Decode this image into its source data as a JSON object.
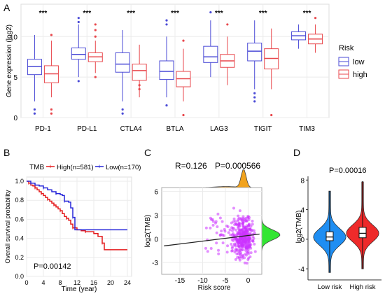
{
  "panels": {
    "A": "A",
    "B": "B",
    "C": "C",
    "D": "D"
  },
  "chart_data": [
    {
      "panel": "A",
      "type": "box",
      "ylabel": "Gene expression (log2)",
      "ylim": [
        0,
        14
      ],
      "yticks": [
        0,
        5,
        10
      ],
      "categories": [
        "PD-1",
        "PD-L1",
        "CTLA4",
        "BTLA",
        "LAG3",
        "TIGIT",
        "TIM3"
      ],
      "significance": [
        "***",
        "***",
        "***",
        "***",
        "***",
        "***",
        "***"
      ],
      "legend_title": "Risk",
      "grid": true,
      "legend_position": "right",
      "colors": {
        "low": "#4a4ad6",
        "high": "#e8474c"
      },
      "series": [
        {
          "name": "low",
          "boxes": [
            {
              "min": 2.0,
              "q1": 5.3,
              "median": 6.3,
              "q3": 7.2,
              "max": 10.2,
              "outliers": [
                0.5,
                1.0
              ]
            },
            {
              "min": 5.0,
              "q1": 7.2,
              "median": 7.8,
              "q3": 8.6,
              "max": 11.5,
              "outliers": [
                4.5,
                12.3,
                11.8
              ]
            },
            {
              "min": 2.0,
              "q1": 5.6,
              "median": 6.6,
              "q3": 8.0,
              "max": 10.8,
              "outliers": [
                0.5,
                1.0
              ]
            },
            {
              "min": 2.5,
              "q1": 4.7,
              "median": 5.7,
              "q3": 7.0,
              "max": 10.0,
              "outliers": [
                1.5,
                11.5,
                12.0
              ]
            },
            {
              "min": 5.0,
              "q1": 6.8,
              "median": 7.5,
              "q3": 8.8,
              "max": 12.0,
              "outliers": [
                13.0
              ]
            },
            {
              "min": 3.5,
              "q1": 7.0,
              "median": 8.2,
              "q3": 9.2,
              "max": 12.0,
              "outliers": [
                2.0,
                2.5,
                3.0
              ]
            },
            {
              "min": 8.5,
              "q1": 9.6,
              "median": 10.1,
              "q3": 10.6,
              "max": 11.5,
              "outliers": []
            }
          ]
        },
        {
          "name": "high",
          "boxes": [
            {
              "min": 2.5,
              "q1": 4.3,
              "median": 5.4,
              "q3": 6.4,
              "max": 9.5,
              "outliers": [
                0.5,
                1.0,
                10.2
              ]
            },
            {
              "min": 5.5,
              "q1": 6.9,
              "median": 7.5,
              "q3": 8.0,
              "max": 9.5,
              "outliers": [
                5.0,
                10.0,
                10.8,
                11.5
              ]
            },
            {
              "min": 2.5,
              "q1": 4.6,
              "median": 5.8,
              "q3": 6.6,
              "max": 9.0,
              "outliers": [
                3.5,
                4.0
              ]
            },
            {
              "min": 2.0,
              "q1": 3.8,
              "median": 4.8,
              "q3": 5.7,
              "max": 8.5,
              "outliers": [
                0.3,
                9.5
              ]
            },
            {
              "min": 4.0,
              "q1": 6.2,
              "median": 7.0,
              "q3": 7.8,
              "max": 10.0,
              "outliers": [
                11.5
              ]
            },
            {
              "min": 3.5,
              "q1": 6.0,
              "median": 7.3,
              "q3": 8.5,
              "max": 11.0,
              "outliers": [
                0.3
              ]
            },
            {
              "min": 8.0,
              "q1": 9.1,
              "median": 9.7,
              "q3": 10.3,
              "max": 11.5,
              "outliers": [
                12.3
              ]
            }
          ]
        }
      ]
    },
    {
      "panel": "B",
      "type": "line",
      "subtype": "kaplan-meier",
      "xlabel": "Time (year)",
      "ylabel": "Overall survival probability",
      "xlim": [
        0,
        25
      ],
      "ylim": [
        0,
        1
      ],
      "xticks": [
        0,
        4,
        8,
        12,
        16,
        20,
        24
      ],
      "yticks": [
        0.0,
        0.2,
        0.4,
        0.6,
        0.8,
        1.0
      ],
      "legend_title": "TMB",
      "legend_position": "top",
      "annotation": "P=0.00142",
      "series": [
        {
          "name": "High(n=581)",
          "color": "#e41a1c",
          "points": [
            [
              0,
              1.0
            ],
            [
              0.5,
              0.98
            ],
            [
              1,
              0.96
            ],
            [
              1.5,
              0.95
            ],
            [
              2,
              0.93
            ],
            [
              2.5,
              0.91
            ],
            [
              3,
              0.89
            ],
            [
              3.5,
              0.87
            ],
            [
              4,
              0.85
            ],
            [
              4.5,
              0.83
            ],
            [
              5,
              0.81
            ],
            [
              5.5,
              0.79
            ],
            [
              6,
              0.77
            ],
            [
              6.5,
              0.75
            ],
            [
              7,
              0.73
            ],
            [
              7.5,
              0.71
            ],
            [
              8,
              0.69
            ],
            [
              8.5,
              0.66
            ],
            [
              9,
              0.63
            ],
            [
              9.5,
              0.61
            ],
            [
              10,
              0.59
            ],
            [
              10.5,
              0.55
            ],
            [
              11,
              0.51
            ],
            [
              12,
              0.49
            ],
            [
              13,
              0.48
            ],
            [
              14,
              0.47
            ],
            [
              16,
              0.45
            ],
            [
              17,
              0.42
            ],
            [
              18,
              0.35
            ],
            [
              18.5,
              0.28
            ],
            [
              24,
              0.28
            ]
          ]
        },
        {
          "name": "Low(n=170)",
          "color": "#2626d9",
          "points": [
            [
              0,
              1.0
            ],
            [
              1,
              0.98
            ],
            [
              2,
              0.96
            ],
            [
              3,
              0.95
            ],
            [
              4,
              0.93
            ],
            [
              5,
              0.91
            ],
            [
              6,
              0.89
            ],
            [
              7,
              0.87
            ],
            [
              8,
              0.86
            ],
            [
              8.5,
              0.85
            ],
            [
              9,
              0.79
            ],
            [
              10,
              0.78
            ],
            [
              10.5,
              0.72
            ],
            [
              11,
              0.62
            ],
            [
              11.5,
              0.49
            ],
            [
              24,
              0.49
            ]
          ]
        }
      ]
    },
    {
      "panel": "C",
      "type": "scatter",
      "xlabel": "Risk score",
      "ylabel": "log2(TMB)",
      "xlim": [
        -19,
        3
      ],
      "ylim": [
        -4.5,
        6.5
      ],
      "xticks": [
        -15,
        -10,
        -5,
        0
      ],
      "yticks": [
        -3,
        0,
        3,
        6
      ],
      "stats": {
        "r_label": "R=0.126",
        "p_label": "P=0.000566"
      },
      "regression": {
        "x": [
          -18.5,
          2.5
        ],
        "y": [
          -0.9,
          0.6
        ]
      },
      "point_color": "#cc33ff",
      "marginal_top_color": "#f2a31d",
      "marginal_right_color": "#33e633"
    },
    {
      "panel": "D",
      "type": "violin",
      "ylabel": "log2(TMB)",
      "ylim": [
        -5.5,
        8.5
      ],
      "yticks": [
        -4,
        0,
        4,
        8
      ],
      "categories": [
        "Low risk",
        "High risk"
      ],
      "annotation": "P=0.00016",
      "colors": [
        "#1f8ef2",
        "#ee2a2a"
      ],
      "boxes": [
        {
          "q1": -0.2,
          "median": 0.3,
          "q3": 1.0,
          "min": -4.5,
          "max": 6.5
        },
        {
          "q1": 0.2,
          "median": 0.8,
          "q3": 1.6,
          "min": -4.0,
          "max": 7.8
        }
      ]
    }
  ]
}
